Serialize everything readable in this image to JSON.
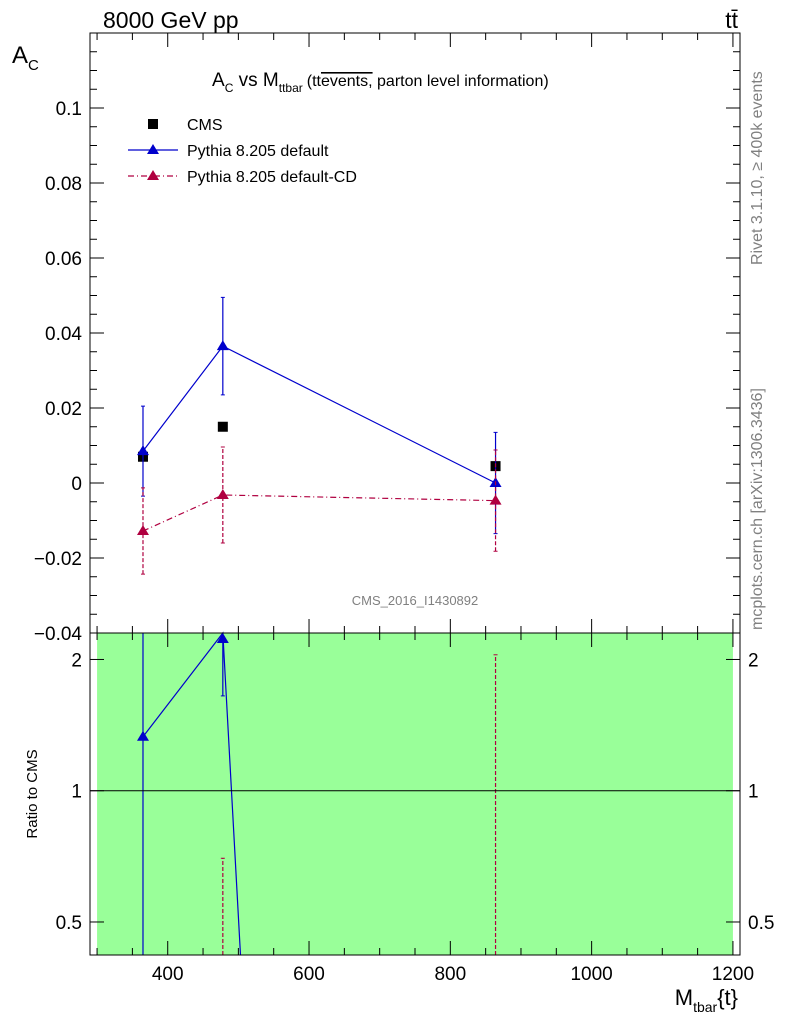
{
  "header": {
    "left": "8000 GeV pp",
    "right": "tt̄"
  },
  "side_labels": {
    "rivet": "Rivet 3.1.10, ≥ 400k events",
    "mcplots": "mcplots.cern.ch [arXiv:1306.3436]"
  },
  "analysis_id": "CMS_2016_I1430892",
  "chart_data": [
    {
      "type": "scatter",
      "title": {
        "main": "A",
        "main_sub": "C",
        "mid": " vs M",
        "mid_sub": "ttbar",
        "paren": "(tt",
        "overline": "events,",
        "rest": " parton level information)"
      },
      "ylabel": {
        "main": "A",
        "sub": "C"
      },
      "xlim": [
        290,
        1210
      ],
      "ylim": [
        -0.04,
        0.12
      ],
      "yticks": [
        -0.04,
        -0.02,
        0,
        0.02,
        0.04,
        0.06,
        0.08,
        0.1
      ],
      "ytick_labels": [
        "−0.04",
        "−0.02",
        "0",
        "0.02",
        "0.04",
        "0.06",
        "0.08",
        "0.1"
      ],
      "legend_position": "top-left",
      "series": [
        {
          "name": "CMS",
          "style": "data",
          "color": "#000000",
          "points": [
            {
              "x": 365,
              "y": 0.007
            },
            {
              "x": 478,
              "y": 0.015
            },
            {
              "x": 864,
              "y": 0.0045
            }
          ]
        },
        {
          "name": "Pythia 8.205 default",
          "style": "solid",
          "color": "#0000cc",
          "points": [
            {
              "x": 365,
              "y": 0.0085,
              "err": 0.012
            },
            {
              "x": 478,
              "y": 0.0365,
              "err": 0.013
            },
            {
              "x": 864,
              "y": 0.0,
              "err": 0.0135
            }
          ]
        },
        {
          "name": "Pythia 8.205 default-CD",
          "style": "dashdot",
          "color": "#b00040",
          "points": [
            {
              "x": 365,
              "y": -0.0128,
              "err": 0.0115
            },
            {
              "x": 478,
              "y": -0.0032,
              "err": 0.0128
            },
            {
              "x": 864,
              "y": -0.0047,
              "err": 0.0135
            }
          ]
        }
      ]
    },
    {
      "type": "line",
      "ylabel": "Ratio to CMS",
      "xlabel": {
        "main": "M",
        "sub": "tbar",
        "rest": "{t}"
      },
      "xlim": [
        290,
        1210
      ],
      "ylim": [
        0.42,
        2.3
      ],
      "log_y": true,
      "xticks": [
        400,
        600,
        800,
        1000,
        1200
      ],
      "yticks": [
        0.5,
        1,
        2
      ],
      "ytick_labels": [
        "0.5",
        "1",
        "2"
      ],
      "band": {
        "x_from": 300,
        "x_to": 1200,
        "color": "#99ff99"
      },
      "series": [
        {
          "name": "Pythia 8.205 default",
          "style": "solid",
          "color": "#0000cc",
          "points": [
            {
              "x": 365,
              "y": 1.33
            },
            {
              "x": 478,
              "y": 2.3
            },
            {
              "x": 503,
              "y": 0.42
            }
          ]
        },
        {
          "name": "Pythia 8.205 default-CD",
          "style": "dashdot",
          "color": "#b00040",
          "error_bars": [
            {
              "x": 478,
              "low": 0.42,
              "high": 0.7
            },
            {
              "x": 864,
              "low": 0.42,
              "high": 2.05
            }
          ]
        }
      ]
    }
  ]
}
